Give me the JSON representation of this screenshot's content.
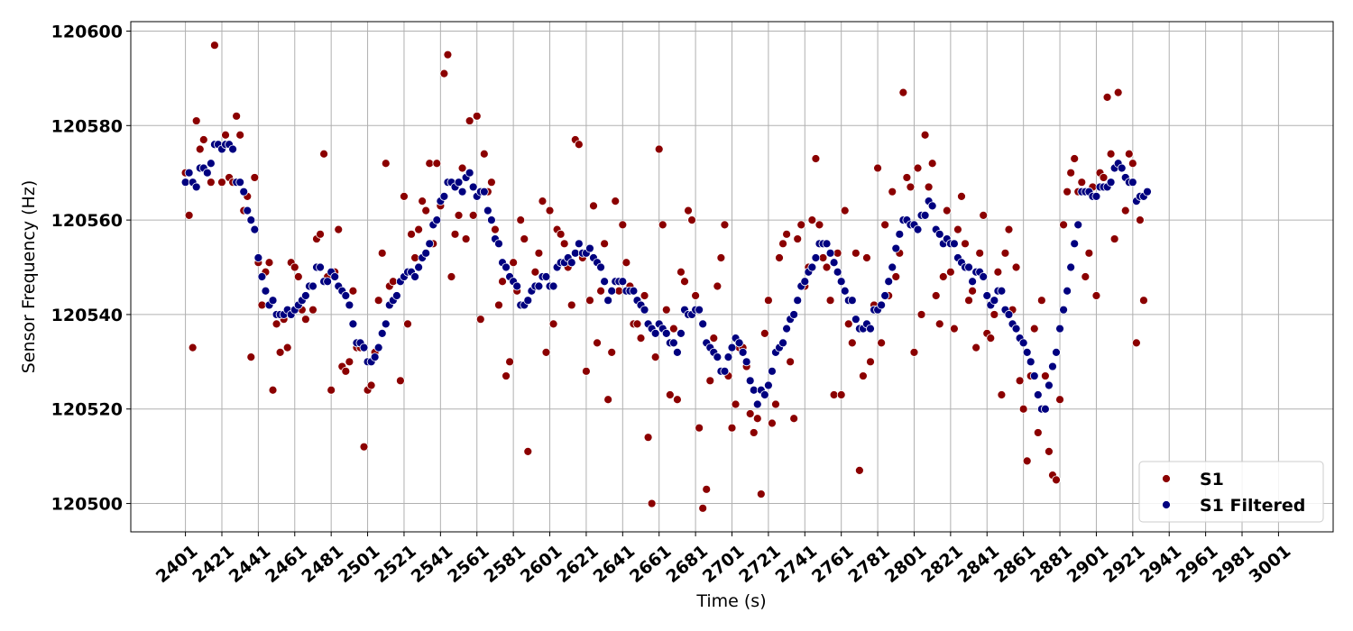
{
  "chart_data": {
    "type": "scatter",
    "title": "",
    "xlabel": "Time (s)",
    "ylabel": "Sensor Frequency (Hz)",
    "xlim": [
      2371,
      3031
    ],
    "ylim": [
      120494,
      120602
    ],
    "x_ticks": [
      2401,
      2421,
      2441,
      2461,
      2481,
      2501,
      2521,
      2541,
      2561,
      2581,
      2601,
      2621,
      2641,
      2661,
      2681,
      2701,
      2721,
      2741,
      2761,
      2781,
      2801,
      2821,
      2841,
      2861,
      2881,
      2901,
      2921,
      2941,
      2961,
      2981,
      3001
    ],
    "y_ticks": [
      120500,
      120520,
      120540,
      120560,
      120580,
      120600
    ],
    "grid": true,
    "legend_position": "lower-right",
    "series": [
      {
        "name": "S1",
        "color": "#8b0000",
        "x_start": 2401,
        "x_step": 2,
        "values": [
          120570,
          120561,
          120533,
          120581,
          120575,
          120577,
          120570,
          120568,
          120597,
          120576,
          120568,
          120578,
          120569,
          120568,
          120582,
          120578,
          120562,
          120565,
          120531,
          120569,
          120551,
          120542,
          120549,
          120551,
          120524,
          120538,
          120532,
          120539,
          120533,
          120551,
          120550,
          120548,
          120541,
          120539,
          120546,
          120541,
          120556,
          120557,
          120574,
          120548,
          120524,
          120549,
          120558,
          120529,
          120528,
          120530,
          120545,
          120533,
          120533,
          120512,
          120524,
          120525,
          120532,
          120543,
          120553,
          120572,
          120546,
          120547,
          120544,
          120526,
          120565,
          120538,
          120557,
          120552,
          120558,
          120564,
          120562,
          120572,
          120555,
          120572,
          120563,
          120591,
          120595,
          120548,
          120557,
          120561,
          120571,
          120556,
          120581,
          120561,
          120582,
          120539,
          120574,
          120566,
          120568,
          120558,
          120542,
          120547,
          120527,
          120530,
          120551,
          120545,
          120560,
          120556,
          120511,
          120545,
          120549,
          120553,
          120564,
          120532,
          120562,
          120538,
          120558,
          120557,
          120555,
          120550,
          120542,
          120577,
          120576,
          120552,
          120528,
          120543,
          120563,
          120534,
          120545,
          120555,
          120522,
          120532,
          120564,
          120545,
          120559,
          120551,
          120546,
          120538,
          120538,
          120535,
          120544,
          120514,
          120500,
          120531,
          120575,
          120559,
          120541,
          120523,
          120537,
          120522,
          120549,
          120547,
          120562,
          120560,
          120544,
          120516,
          120499,
          120503,
          120526,
          120535,
          120546,
          120552,
          120559,
          120527,
          120516,
          120521,
          120533,
          120533,
          120529,
          120519,
          120515,
          120518,
          120502,
          120536,
          120543,
          120517,
          120521,
          120552,
          120555,
          120557,
          120530,
          120518,
          120556,
          120559,
          120546,
          120550,
          120560,
          120573,
          120559,
          120552,
          120550,
          120543,
          120523,
          120553,
          120523,
          120562,
          120538,
          120534,
          120553,
          120507,
          120527,
          120552,
          120530,
          120542,
          120571,
          120534,
          120559,
          120544,
          120566,
          120548,
          120553,
          120587,
          120569,
          120567,
          120532,
          120571,
          120540,
          120578,
          120567,
          120572,
          120544,
          120538,
          120548,
          120562,
          120549,
          120537,
          120558,
          120565,
          120555,
          120543,
          120545,
          120533,
          120553,
          120561,
          120536,
          120535,
          120540,
          120549,
          120523,
          120553,
          120558,
          120541,
          120550,
          120526,
          120520,
          120509,
          120527,
          120537,
          120515,
          120543,
          120527,
          120511,
          120506,
          120505,
          120522,
          120559,
          120566,
          120570,
          120573,
          120566,
          120568,
          120548,
          120553,
          120567,
          120544,
          120570,
          120569,
          120586,
          120574,
          120556,
          120587,
          120571,
          120562,
          120574,
          120572,
          120534,
          120560,
          120543
        ]
      },
      {
        "name": "S1 Filtered",
        "color": "#00007f",
        "x_start": 2401,
        "x_step": 2,
        "values": [
          120568,
          120570,
          120568,
          120567,
          120571,
          120571,
          120570,
          120572,
          120576,
          120576,
          120575,
          120576,
          120576,
          120575,
          120568,
          120568,
          120566,
          120562,
          120560,
          120558,
          120552,
          120548,
          120545,
          120542,
          120543,
          120540,
          120540,
          120540,
          120541,
          120540,
          120541,
          120542,
          120543,
          120544,
          120546,
          120546,
          120550,
          120550,
          120547,
          120547,
          120549,
          120548,
          120546,
          120545,
          120544,
          120542,
          120538,
          120534,
          120534,
          120533,
          120530,
          120530,
          120531,
          120533,
          120536,
          120538,
          120542,
          120543,
          120544,
          120547,
          120548,
          120549,
          120549,
          120548,
          120550,
          120552,
          120553,
          120555,
          120559,
          120560,
          120564,
          120565,
          120568,
          120568,
          120567,
          120568,
          120566,
          120569,
          120570,
          120567,
          120565,
          120566,
          120566,
          120562,
          120560,
          120556,
          120555,
          120551,
          120550,
          120548,
          120547,
          120546,
          120542,
          120542,
          120543,
          120545,
          120546,
          120546,
          120548,
          120548,
          120546,
          120546,
          120550,
          120551,
          120551,
          120552,
          120551,
          120553,
          120555,
          120553,
          120553,
          120554,
          120552,
          120551,
          120550,
          120547,
          120543,
          120545,
          120547,
          120547,
          120547,
          120545,
          120545,
          120545,
          120543,
          120542,
          120541,
          120538,
          120537,
          120536,
          120538,
          120537,
          120536,
          120534,
          120534,
          120532,
          120536,
          120541,
          120540,
          120540,
          120541,
          120541,
          120538,
          120534,
          120533,
          120532,
          120531,
          120528,
          120528,
          120531,
          120533,
          120535,
          120534,
          120532,
          120530,
          120526,
          120524,
          120521,
          120524,
          120523,
          120525,
          120528,
          120532,
          120533,
          120534,
          120537,
          120539,
          120540,
          120543,
          120546,
          120547,
          120549,
          120550,
          120552,
          120555,
          120555,
          120555,
          120553,
          120551,
          120549,
          120547,
          120545,
          120543,
          120543,
          120539,
          120537,
          120537,
          120538,
          120537,
          120541,
          120541,
          120542,
          120544,
          120547,
          120550,
          120554,
          120557,
          120560,
          120560,
          120559,
          120559,
          120558,
          120561,
          120561,
          120564,
          120563,
          120558,
          120557,
          120555,
          120556,
          120555,
          120555,
          120552,
          120551,
          120550,
          120550,
          120547,
          120549,
          120549,
          120548,
          120544,
          120542,
          120543,
          120545,
          120545,
          120541,
          120540,
          120538,
          120537,
          120535,
          120534,
          120532,
          120530,
          120527,
          120523,
          120520,
          120520,
          120525,
          120529,
          120532,
          120537,
          120541,
          120545,
          120550,
          120555,
          120559,
          120566,
          120566,
          120566,
          120565,
          120565,
          120567,
          120567,
          120567,
          120568,
          120571,
          120572,
          120571,
          120569,
          120568,
          120568,
          120564,
          120565,
          120565,
          120566
        ]
      }
    ]
  }
}
